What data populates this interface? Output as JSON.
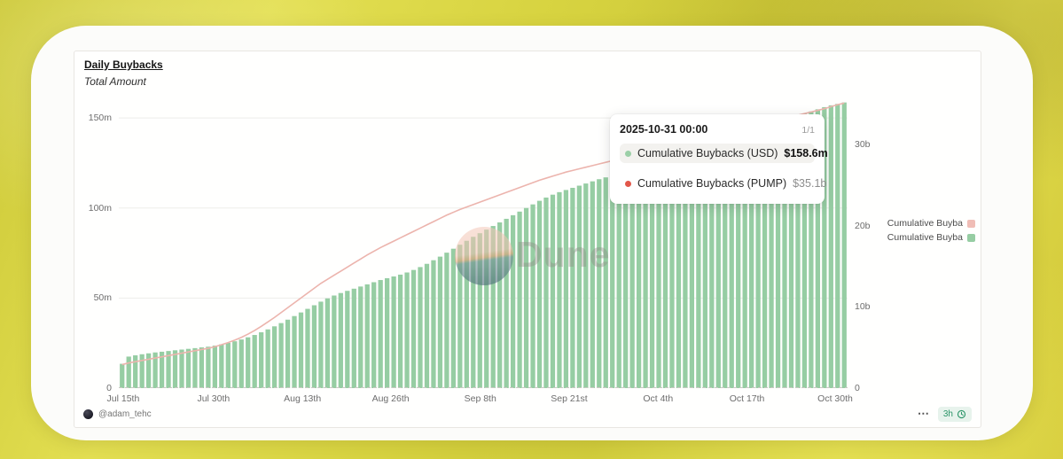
{
  "widget": {
    "title": "Daily Buybacks",
    "subtitle": "Total Amount",
    "author": "@adam_tehc",
    "menu_label": "⋯",
    "refreshed_ago": "3h"
  },
  "watermark": {
    "text": "Dune"
  },
  "legend": {
    "items": [
      {
        "label": "Cumulative Buyba",
        "color": "#f0bdb6"
      },
      {
        "label": "Cumulative Buyba",
        "color": "#96cda3"
      }
    ]
  },
  "tooltip": {
    "date": "2025-10-31 00:00",
    "page_indicator": "1/1",
    "rows": [
      {
        "label": "Cumulative Buybacks (USD)",
        "value": "$158.6m",
        "dot_color": "#9bcfa7"
      },
      {
        "label": "Cumulative Buybacks (PUMP)",
        "value": "$35.1b",
        "dot_color": "#e2574a"
      }
    ]
  },
  "colors": {
    "bar_green": "#96cda3",
    "line_pink": "#ecb4ad",
    "grid": "#ededea",
    "baseline": "#c9c7c3",
    "axis_text": "#6d6d6d",
    "badge_green": "#2a9467",
    "background_yellow": "#d7d340"
  },
  "chart_data": {
    "type": "bar",
    "title": "Daily Buybacks",
    "subtitle": "Total Amount",
    "legend_position": "right",
    "grid": true,
    "x": [
      "2025-07-14",
      "2025-07-15",
      "2025-07-16",
      "2025-07-17",
      "2025-07-18",
      "2025-07-19",
      "2025-07-20",
      "2025-07-21",
      "2025-07-22",
      "2025-07-23",
      "2025-07-24",
      "2025-07-25",
      "2025-07-26",
      "2025-07-27",
      "2025-07-28",
      "2025-07-29",
      "2025-07-30",
      "2025-07-31",
      "2025-08-01",
      "2025-08-02",
      "2025-08-03",
      "2025-08-04",
      "2025-08-05",
      "2025-08-06",
      "2025-08-07",
      "2025-08-08",
      "2025-08-09",
      "2025-08-10",
      "2025-08-11",
      "2025-08-12",
      "2025-08-13",
      "2025-08-14",
      "2025-08-15",
      "2025-08-16",
      "2025-08-17",
      "2025-08-18",
      "2025-08-19",
      "2025-08-20",
      "2025-08-21",
      "2025-08-22",
      "2025-08-23",
      "2025-08-24",
      "2025-08-25",
      "2025-08-26",
      "2025-08-27",
      "2025-08-28",
      "2025-08-29",
      "2025-08-30",
      "2025-08-31",
      "2025-09-01",
      "2025-09-02",
      "2025-09-03",
      "2025-09-04",
      "2025-09-05",
      "2025-09-06",
      "2025-09-07",
      "2025-09-08",
      "2025-09-09",
      "2025-09-10",
      "2025-09-11",
      "2025-09-12",
      "2025-09-13",
      "2025-09-14",
      "2025-09-15",
      "2025-09-16",
      "2025-09-17",
      "2025-09-18",
      "2025-09-19",
      "2025-09-20",
      "2025-09-21",
      "2025-09-22",
      "2025-09-23",
      "2025-09-24",
      "2025-09-25",
      "2025-09-26",
      "2025-09-27",
      "2025-09-28",
      "2025-09-29",
      "2025-09-30",
      "2025-10-01",
      "2025-10-02",
      "2025-10-03",
      "2025-10-04",
      "2025-10-05",
      "2025-10-06",
      "2025-10-07",
      "2025-10-08",
      "2025-10-09",
      "2025-10-10",
      "2025-10-11",
      "2025-10-12",
      "2025-10-13",
      "2025-10-14",
      "2025-10-15",
      "2025-10-16",
      "2025-10-17",
      "2025-10-18",
      "2025-10-19",
      "2025-10-20",
      "2025-10-21",
      "2025-10-22",
      "2025-10-23",
      "2025-10-24",
      "2025-10-25",
      "2025-10-26",
      "2025-10-27",
      "2025-10-28",
      "2025-10-29",
      "2025-10-30",
      "2025-10-31"
    ],
    "series": [
      {
        "name": "Cumulative Buybacks (USD)",
        "render": "bar",
        "axis": "left",
        "unit": "USD millions",
        "color": "#96cda3",
        "values": [
          13.5,
          17.5,
          18.2,
          18.8,
          19.3,
          19.8,
          20.2,
          20.6,
          21.0,
          21.4,
          21.8,
          22.2,
          22.6,
          23.0,
          23.6,
          24.3,
          25.1,
          26.0,
          27.0,
          28.2,
          29.5,
          31.0,
          32.6,
          34.3,
          36.1,
          38.0,
          40.0,
          42.0,
          44.0,
          46.0,
          48.0,
          49.8,
          51.4,
          52.8,
          54.0,
          55.2,
          56.4,
          57.6,
          58.8,
          60.0,
          61.0,
          62.0,
          63.0,
          64.2,
          65.6,
          67.2,
          69.0,
          71.0,
          73.0,
          75.2,
          77.4,
          79.6,
          81.8,
          84.0,
          86.0,
          88.0,
          90.0,
          92.0,
          94.0,
          96.0,
          98.0,
          100.0,
          102.0,
          104.0,
          105.8,
          107.4,
          108.8,
          110.0,
          111.2,
          112.4,
          113.6,
          114.8,
          116.0,
          117.0,
          118.0,
          119.0,
          120.0,
          121.0,
          122.0,
          123.0,
          124.0,
          125.0,
          126.0,
          127.0,
          128.0,
          129.0,
          130.0,
          131.0,
          132.2,
          133.4,
          134.6,
          135.8,
          137.0,
          138.2,
          139.6,
          141.0,
          142.4,
          143.8,
          145.2,
          146.6,
          148.0,
          149.4,
          150.8,
          152.2,
          153.6,
          154.8,
          156.0,
          157.0,
          157.8,
          158.6
        ]
      },
      {
        "name": "Cumulative Buybacks (PUMP)",
        "render": "line",
        "axis": "right",
        "unit": "PUMP billions",
        "color": "#ecb4ad",
        "values": [
          2.9,
          3.1,
          3.25,
          3.4,
          3.55,
          3.7,
          3.85,
          4.0,
          4.15,
          4.3,
          4.45,
          4.6,
          4.75,
          4.9,
          5.1,
          5.35,
          5.6,
          5.9,
          6.25,
          6.65,
          7.1,
          7.6,
          8.15,
          8.7,
          9.3,
          9.9,
          10.5,
          11.1,
          11.7,
          12.3,
          12.9,
          13.4,
          13.9,
          14.4,
          14.9,
          15.4,
          15.9,
          16.4,
          16.85,
          17.3,
          17.7,
          18.1,
          18.5,
          18.9,
          19.3,
          19.7,
          20.1,
          20.5,
          20.9,
          21.3,
          21.65,
          22.0,
          22.3,
          22.6,
          22.9,
          23.2,
          23.5,
          23.8,
          24.1,
          24.4,
          24.7,
          25.0,
          25.3,
          25.6,
          25.85,
          26.1,
          26.35,
          26.6,
          26.8,
          27.0,
          27.2,
          27.4,
          27.6,
          27.8,
          28.0,
          28.2,
          28.4,
          28.6,
          28.8,
          29.0,
          29.2,
          29.4,
          29.6,
          29.8,
          30.0,
          30.2,
          30.4,
          30.6,
          30.8,
          31.0,
          31.2,
          31.4,
          31.6,
          31.8,
          32.0,
          32.2,
          32.4,
          32.6,
          32.8,
          33.0,
          33.2,
          33.4,
          33.6,
          33.8,
          34.0,
          34.2,
          34.4,
          34.65,
          34.9,
          35.1
        ]
      }
    ],
    "left_axis": {
      "tick_values": [
        0,
        50,
        100,
        150
      ],
      "tick_labels": [
        "0",
        "50m",
        "100m",
        "150m"
      ],
      "range": [
        0,
        159.4
      ]
    },
    "right_axis": {
      "tick_values": [
        0,
        10,
        20,
        30
      ],
      "tick_labels": [
        "0",
        "10b",
        "20b",
        "30b"
      ],
      "range": [
        0,
        35.35
      ]
    },
    "x_ticks": {
      "labels": [
        "Jul 15th",
        "Jul 30th",
        "Aug 13th",
        "Aug 26th",
        "Sep 8th",
        "Sep 21st",
        "Oct 4th",
        "Oct 17th",
        "Oct 30th"
      ],
      "fractions": [
        0.006,
        0.13,
        0.252,
        0.373,
        0.496,
        0.618,
        0.74,
        0.862,
        0.983
      ]
    }
  }
}
